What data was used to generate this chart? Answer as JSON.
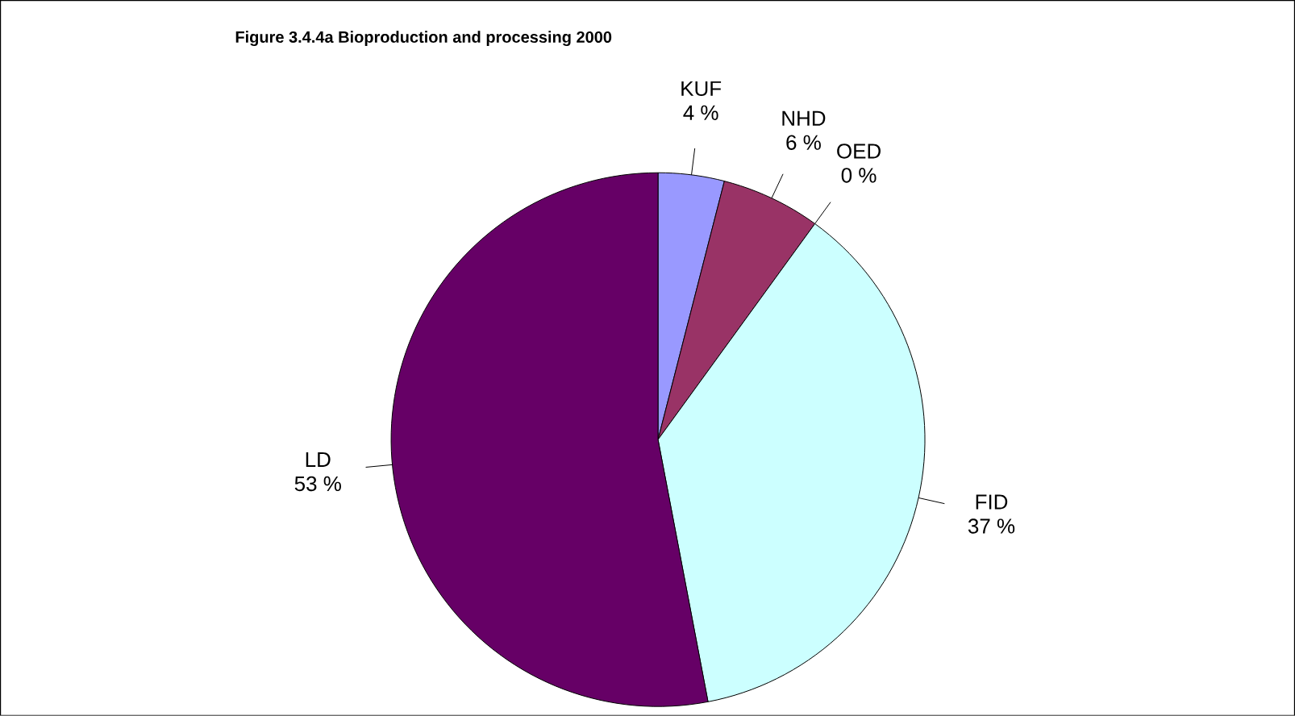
{
  "chart_data": {
    "type": "pie",
    "title": "Figure 3.4.4a  Bioproduction and processing 2000",
    "categories": [
      "KUF",
      "NHD",
      "OED",
      "FID",
      "LD"
    ],
    "values": [
      4,
      6,
      0,
      37,
      53
    ],
    "value_labels": [
      "4 %",
      "6 %",
      "0 %",
      "37 %",
      "53 %"
    ],
    "colors": [
      "#9999ff",
      "#993366",
      "#ffffcc",
      "#ccffff",
      "#660066"
    ]
  }
}
